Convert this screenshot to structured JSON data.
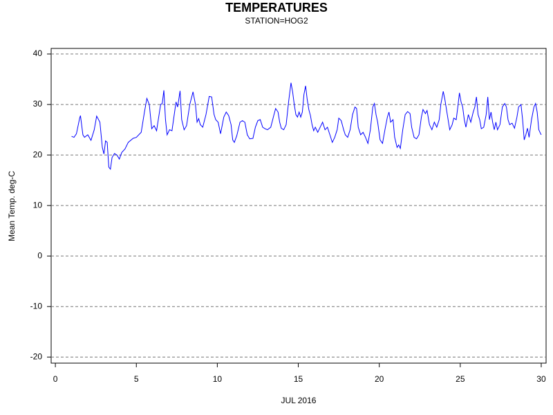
{
  "chart_data": {
    "type": "line",
    "title": "TEMPERATURES",
    "subtitle": "STATION=HOG2",
    "x_label": "JUL 2016",
    "y_label": "Mean Temp. deg-C",
    "color": "#0000ff",
    "grid": true,
    "xlim": [
      -0.26,
      30.3
    ],
    "ylim": [
      -21.2,
      41.1
    ],
    "xticks": [
      0,
      5,
      10,
      15,
      20,
      25,
      30
    ],
    "yticks": [
      -20,
      -10,
      0,
      10,
      20,
      30,
      40
    ],
    "x": [
      1.0,
      1.15,
      1.3,
      1.5,
      1.55,
      1.7,
      1.8,
      2.0,
      2.2,
      2.4,
      2.55,
      2.75,
      2.9,
      3.0,
      3.1,
      3.2,
      3.3,
      3.4,
      3.5,
      3.65,
      3.8,
      3.95,
      4.1,
      4.3,
      4.5,
      4.8,
      5.0,
      5.3,
      5.5,
      5.65,
      5.8,
      5.95,
      6.1,
      6.25,
      6.5,
      6.6,
      6.7,
      6.8,
      6.9,
      7.05,
      7.2,
      7.45,
      7.55,
      7.7,
      7.8,
      7.95,
      8.1,
      8.3,
      8.5,
      8.65,
      8.75,
      8.85,
      8.95,
      9.1,
      9.3,
      9.5,
      9.65,
      9.8,
      9.9,
      10.05,
      10.2,
      10.4,
      10.55,
      10.7,
      10.85,
      10.95,
      11.05,
      11.2,
      11.4,
      11.55,
      11.7,
      11.85,
      12.0,
      12.2,
      12.35,
      12.5,
      12.65,
      12.8,
      12.95,
      13.1,
      13.3,
      13.5,
      13.6,
      13.75,
      13.85,
      13.95,
      14.1,
      14.25,
      14.4,
      14.55,
      14.65,
      14.75,
      14.85,
      14.95,
      15.05,
      15.15,
      15.25,
      15.35,
      15.45,
      15.55,
      15.65,
      15.75,
      15.85,
      15.95,
      16.05,
      16.2,
      16.35,
      16.5,
      16.65,
      16.8,
      16.95,
      17.1,
      17.25,
      17.4,
      17.5,
      17.65,
      17.8,
      17.9,
      18.05,
      18.2,
      18.35,
      18.5,
      18.6,
      18.7,
      18.85,
      19.0,
      19.15,
      19.3,
      19.45,
      19.6,
      19.7,
      19.8,
      19.9,
      20.05,
      20.2,
      20.35,
      20.5,
      20.6,
      20.7,
      20.85,
      20.95,
      21.1,
      21.2,
      21.3,
      21.45,
      21.6,
      21.75,
      21.9,
      22.0,
      22.15,
      22.3,
      22.45,
      22.6,
      22.7,
      22.85,
      22.95,
      23.1,
      23.25,
      23.4,
      23.55,
      23.7,
      23.8,
      23.95,
      24.05,
      24.2,
      24.35,
      24.5,
      24.6,
      24.75,
      24.85,
      24.95,
      25.05,
      25.15,
      25.25,
      25.35,
      25.5,
      25.65,
      25.8,
      25.9,
      26.0,
      26.1,
      26.2,
      26.3,
      26.45,
      26.6,
      26.7,
      26.8,
      26.9,
      27.0,
      27.1,
      27.2,
      27.3,
      27.45,
      27.6,
      27.75,
      27.85,
      27.95,
      28.05,
      28.2,
      28.35,
      28.5,
      28.6,
      28.75,
      28.85,
      28.95,
      29.05,
      29.15,
      29.25,
      29.4,
      29.55,
      29.65,
      29.75,
      29.85,
      29.95,
      30.0
    ],
    "values": [
      23.7,
      23.5,
      24.2,
      27.3,
      27.8,
      24,
      23.5,
      24,
      22.9,
      25,
      27.7,
      26.5,
      21.5,
      20.2,
      22.8,
      22.5,
      17.6,
      17.2,
      19.5,
      20.3,
      20,
      19.2,
      20.5,
      21.2,
      22.5,
      23.3,
      23.5,
      24.5,
      28.5,
      31.2,
      30,
      25.2,
      25.8,
      24.8,
      30,
      30.2,
      32.8,
      27,
      24,
      25,
      24.8,
      30.5,
      29.5,
      32.7,
      27,
      25,
      25.8,
      30,
      32.5,
      30,
      26.5,
      27.2,
      26,
      25.5,
      28,
      31.6,
      31.5,
      28,
      27,
      26.5,
      24.2,
      27.5,
      28.5,
      27.8,
      26,
      23,
      22.5,
      23.8,
      26.5,
      26.8,
      26.5,
      24,
      23.2,
      23.3,
      25.5,
      26.8,
      27,
      25.5,
      25.2,
      25,
      25.5,
      28,
      29.2,
      28.5,
      26.5,
      25.3,
      25,
      26,
      30.5,
      34.3,
      32.5,
      30,
      28,
      27.5,
      28.5,
      27.5,
      28.5,
      32,
      33.7,
      31,
      29,
      27.8,
      26,
      24.8,
      25.5,
      24.5,
      25.5,
      26.5,
      25,
      25.5,
      24,
      22.5,
      23.5,
      25,
      27.3,
      26.8,
      25,
      24,
      23.5,
      25,
      28,
      29.5,
      29.2,
      25.5,
      24,
      24.5,
      23.5,
      22.3,
      25,
      29.5,
      30.2,
      28,
      26.5,
      23,
      22.3,
      25,
      27.5,
      28.5,
      26.5,
      27,
      23.5,
      21.5,
      22,
      21.3,
      25,
      28,
      28.6,
      28.2,
      25.5,
      23.5,
      23.2,
      24,
      27.5,
      29,
      28.2,
      28.8,
      26,
      25,
      26.5,
      25.5,
      27,
      30,
      32.6,
      31,
      28,
      25,
      26,
      27.3,
      27,
      29.5,
      32.3,
      30.5,
      29.5,
      27,
      25.5,
      28,
      26.5,
      28.5,
      29.5,
      31.5,
      28,
      27,
      25.2,
      25.5,
      28,
      31.5,
      27,
      28.5,
      26.5,
      25,
      26.5,
      25,
      26,
      29.5,
      30.2,
      29.5,
      27,
      26,
      26.3,
      25.3,
      27.5,
      29.5,
      30,
      27,
      23,
      24,
      25.3,
      23.5,
      27,
      29.5,
      30.2,
      28.5,
      25,
      24.3,
      24
    ]
  }
}
